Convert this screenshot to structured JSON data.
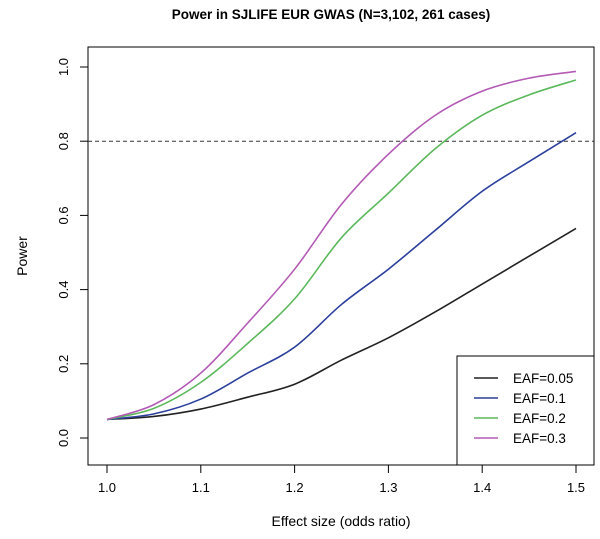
{
  "chart_data": {
    "type": "line",
    "title": "Power in SJLIFE EUR GWAS (N=3,102, 261 cases)",
    "xlabel": "Effect size (odds ratio)",
    "ylabel": "Power",
    "xlim": [
      1.0,
      1.5
    ],
    "ylim": [
      0.0,
      1.0
    ],
    "xticks": [
      "1.0",
      "1.1",
      "1.2",
      "1.3",
      "1.4",
      "1.5"
    ],
    "yticks": [
      "0.0",
      "0.2",
      "0.4",
      "0.6",
      "0.8",
      "1.0"
    ],
    "x": [
      1.0,
      1.05,
      1.1,
      1.15,
      1.2,
      1.25,
      1.3,
      1.35,
      1.4,
      1.45,
      1.5
    ],
    "reference_line": {
      "y": 0.8,
      "style": "dashed"
    },
    "legend_position": "bottom-right",
    "series": [
      {
        "name": "EAF=0.05",
        "color": "#222222",
        "values": [
          0.05,
          0.058,
          0.078,
          0.11,
          0.145,
          0.21,
          0.27,
          0.34,
          0.415,
          0.49,
          0.565
        ]
      },
      {
        "name": "EAF=0.1",
        "color": "#2b3f9c",
        "values": [
          0.05,
          0.065,
          0.105,
          0.175,
          0.245,
          0.36,
          0.455,
          0.56,
          0.665,
          0.745,
          0.823
        ]
      },
      {
        "name": "EAF=0.2",
        "color": "#5cb85c",
        "values": [
          0.05,
          0.08,
          0.15,
          0.255,
          0.375,
          0.54,
          0.66,
          0.78,
          0.87,
          0.925,
          0.965
        ]
      },
      {
        "name": "EAF=0.3",
        "color": "#b35ab5",
        "values": [
          0.05,
          0.09,
          0.175,
          0.31,
          0.455,
          0.63,
          0.765,
          0.87,
          0.935,
          0.97,
          0.988
        ]
      }
    ]
  }
}
